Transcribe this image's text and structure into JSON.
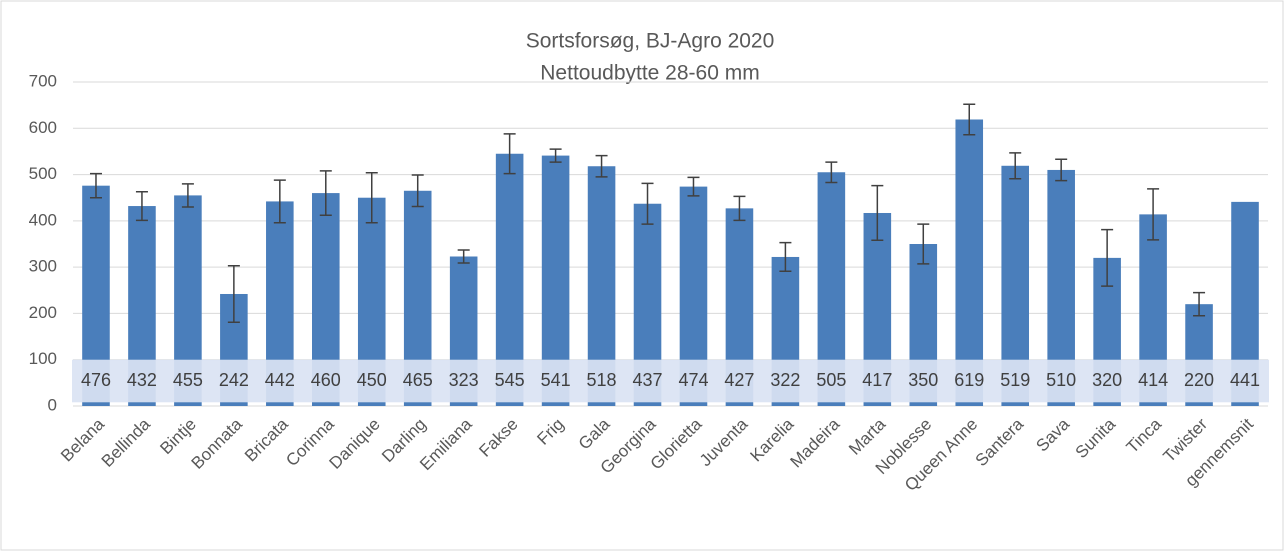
{
  "chart_data": {
    "type": "bar",
    "title": "Sortsforsøg, BJ-Agro 2020",
    "subtitle": "Nettoudbytte 28-60 mm",
    "categories": [
      "Belana",
      "Bellinda",
      "Bintje",
      "Bonnata",
      "Bricata",
      "Corinna",
      "Danique",
      "Darling",
      "Emiliana",
      "Fakse",
      "Frig",
      "Gala",
      "Georgina",
      "Glorietta",
      "Juventa",
      "Karelia",
      "Madeira",
      "Marta",
      "Noblesse",
      "Queen Anne",
      "Santera",
      "Sava",
      "Sunita",
      "Tinca",
      "Twister",
      "gennemsnit"
    ],
    "values": [
      476,
      432,
      455,
      242,
      442,
      460,
      450,
      465,
      323,
      545,
      541,
      518,
      437,
      474,
      427,
      322,
      505,
      417,
      350,
      619,
      519,
      510,
      320,
      414,
      220,
      441
    ],
    "errors": [
      26,
      31,
      25,
      61,
      46,
      48,
      54,
      34,
      14,
      43,
      14,
      23,
      44,
      20,
      26,
      31,
      22,
      59,
      43,
      33,
      28,
      23,
      61,
      55,
      25,
      null
    ],
    "color": "#4a7ebb",
    "ylim": [
      0,
      700
    ],
    "yticks": [
      0,
      100,
      200,
      300,
      400,
      500,
      600,
      700
    ],
    "grid": true
  }
}
